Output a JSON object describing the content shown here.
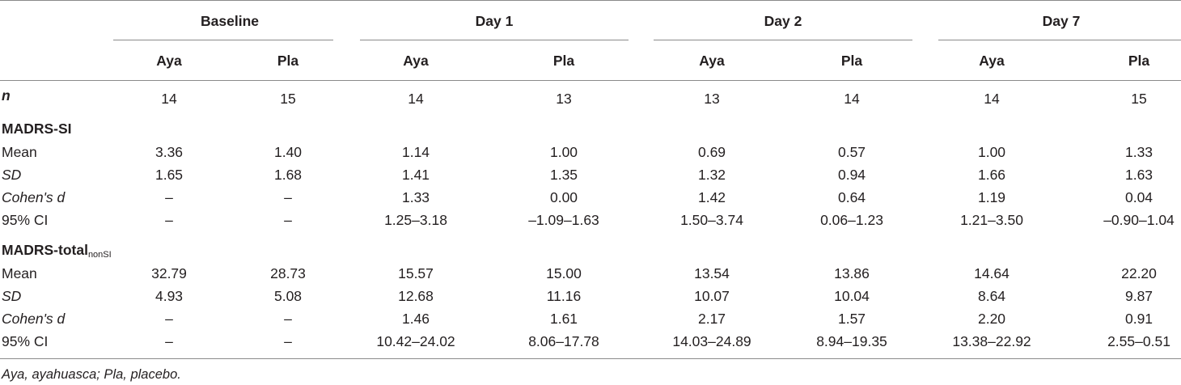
{
  "header": {
    "groups": [
      "Baseline",
      "Day 1",
      "Day 2",
      "Day 7"
    ],
    "subcols": [
      "Aya",
      "Pla",
      "Aya",
      "Pla",
      "Aya",
      "Pla",
      "Aya",
      "Pla"
    ]
  },
  "n_row": {
    "label": "n",
    "values": [
      "14",
      "15",
      "14",
      "13",
      "13",
      "14",
      "14",
      "15"
    ]
  },
  "sections": [
    {
      "title": "MADRS-SI",
      "title_sub": "",
      "rows": [
        {
          "label": "Mean",
          "values": [
            "3.36",
            "1.40",
            "1.14",
            "1.00",
            "0.69",
            "0.57",
            "1.00",
            "1.33"
          ]
        },
        {
          "label": "SD",
          "values": [
            "1.65",
            "1.68",
            "1.41",
            "1.35",
            "1.32",
            "0.94",
            "1.66",
            "1.63"
          ]
        },
        {
          "label": "Cohen's d",
          "values": [
            "–",
            "–",
            "1.33",
            "0.00",
            "1.42",
            "0.64",
            "1.19",
            "0.04"
          ]
        },
        {
          "label": "95% CI",
          "values": [
            "–",
            "–",
            "1.25–3.18",
            "–1.09–1.63",
            "1.50–3.74",
            "0.06–1.23",
            "1.21–3.50",
            "–0.90–1.04"
          ]
        }
      ]
    },
    {
      "title": "MADRS-total",
      "title_sub": "nonSI",
      "rows": [
        {
          "label": "Mean",
          "values": [
            "32.79",
            "28.73",
            "15.57",
            "15.00",
            "13.54",
            "13.86",
            "14.64",
            "22.20"
          ]
        },
        {
          "label": "SD",
          "values": [
            "4.93",
            "5.08",
            "12.68",
            "11.16",
            "10.07",
            "10.04",
            "8.64",
            "9.87"
          ]
        },
        {
          "label": "Cohen's d",
          "values": [
            "–",
            "–",
            "1.46",
            "1.61",
            "2.17",
            "1.57",
            "2.20",
            "0.91"
          ]
        },
        {
          "label": "95% CI",
          "values": [
            "–",
            "–",
            "10.42–24.02",
            "8.06–17.78",
            "14.03–24.89",
            "8.94–19.35",
            "13.38–22.92",
            "2.55–0.51"
          ]
        }
      ]
    }
  ],
  "footnote": "Aya, ayahuasca; Pla, placebo."
}
